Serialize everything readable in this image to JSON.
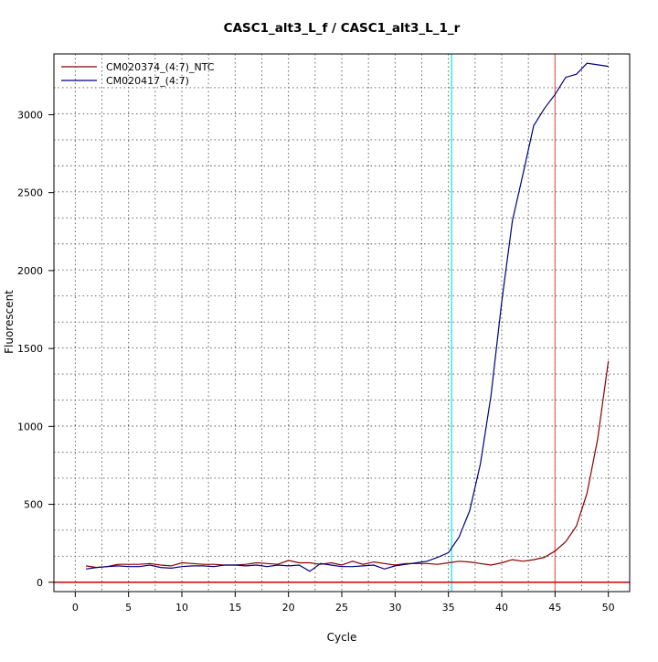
{
  "chart_data": {
    "type": "line",
    "title": "CASC1_alt3_L_f / CASC1_alt3_L_1_r",
    "xlabel": "Cycle",
    "ylabel": "Fluorescent",
    "xlim": [
      -2,
      52
    ],
    "ylim": [
      -60,
      3390
    ],
    "x_ticks": [
      0,
      5,
      10,
      15,
      20,
      25,
      30,
      35,
      40,
      45,
      50
    ],
    "y_ticks": [
      0,
      500,
      1000,
      1500,
      2000,
      2500,
      3000
    ],
    "grid": true,
    "legend_position": "top-left",
    "x": [
      1,
      2,
      3,
      4,
      5,
      6,
      7,
      8,
      9,
      10,
      11,
      12,
      13,
      14,
      15,
      16,
      17,
      18,
      19,
      20,
      21,
      22,
      23,
      24,
      25,
      26,
      27,
      28,
      29,
      30,
      31,
      32,
      33,
      34,
      35,
      36,
      37,
      38,
      39,
      40,
      41,
      42,
      43,
      44,
      45,
      46,
      47,
      48,
      49,
      50
    ],
    "series": [
      {
        "name": "CM020374_(4:7)_NTC",
        "color": "#8b0000",
        "values": [
          105,
          95,
          100,
          115,
          115,
          115,
          120,
          110,
          105,
          125,
          120,
          115,
          115,
          110,
          110,
          115,
          125,
          120,
          115,
          140,
          125,
          125,
          115,
          125,
          110,
          135,
          115,
          130,
          120,
          110,
          120,
          120,
          120,
          115,
          125,
          135,
          130,
          120,
          110,
          125,
          145,
          135,
          145,
          160,
          200,
          260,
          360,
          570,
          920,
          1420
        ]
      },
      {
        "name": "CM020417_(4:7)",
        "color": "#000080",
        "values": [
          85,
          95,
          100,
          105,
          100,
          100,
          110,
          95,
          90,
          100,
          105,
          105,
          100,
          110,
          110,
          105,
          110,
          100,
          110,
          105,
          110,
          70,
          120,
          110,
          100,
          100,
          105,
          110,
          85,
          105,
          115,
          125,
          135,
          160,
          190,
          290,
          460,
          760,
          1200,
          1800,
          2320,
          2620,
          2930,
          3040,
          3130,
          3240,
          3260,
          3330,
          3320,
          3310
        ]
      }
    ],
    "reference_lines": [
      {
        "orientation": "vertical",
        "x": 35.3,
        "color": "#00e5ee"
      },
      {
        "orientation": "vertical",
        "x": 45,
        "color": "#e06666"
      },
      {
        "orientation": "horizontal",
        "y": 0,
        "color": "#cc0000"
      }
    ]
  }
}
